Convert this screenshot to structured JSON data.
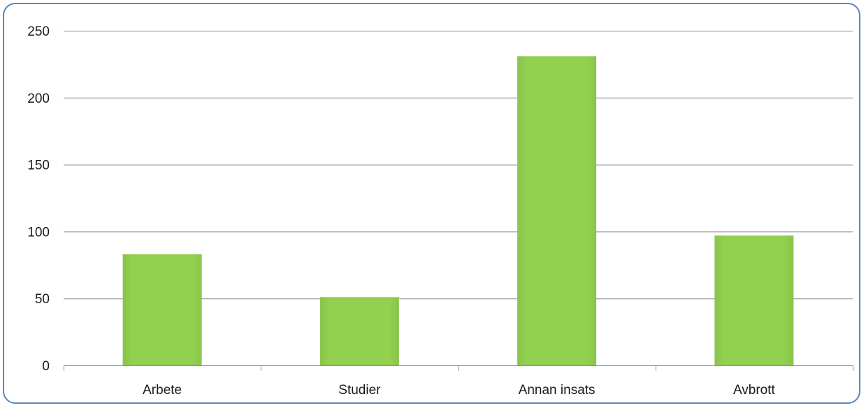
{
  "chart_data": {
    "type": "bar",
    "title": "",
    "xlabel": "",
    "ylabel": "",
    "categories": [
      "Arbete",
      "Studier",
      "Annan insats",
      "Avbrott"
    ],
    "values": [
      83,
      51,
      231,
      97
    ],
    "ylim": [
      0,
      250
    ],
    "yticks": [
      0,
      50,
      100,
      150,
      200,
      250
    ],
    "ytick_labels": [
      "0",
      "50",
      "100",
      "150",
      "200",
      "250"
    ],
    "grid": true,
    "legend": "none",
    "colors": {
      "bar": "#92d050",
      "gridline": "#8c8c8c",
      "axis": "#8c8c8c",
      "frame_border": "#5b86b8",
      "text": "#1a1a1a"
    }
  }
}
